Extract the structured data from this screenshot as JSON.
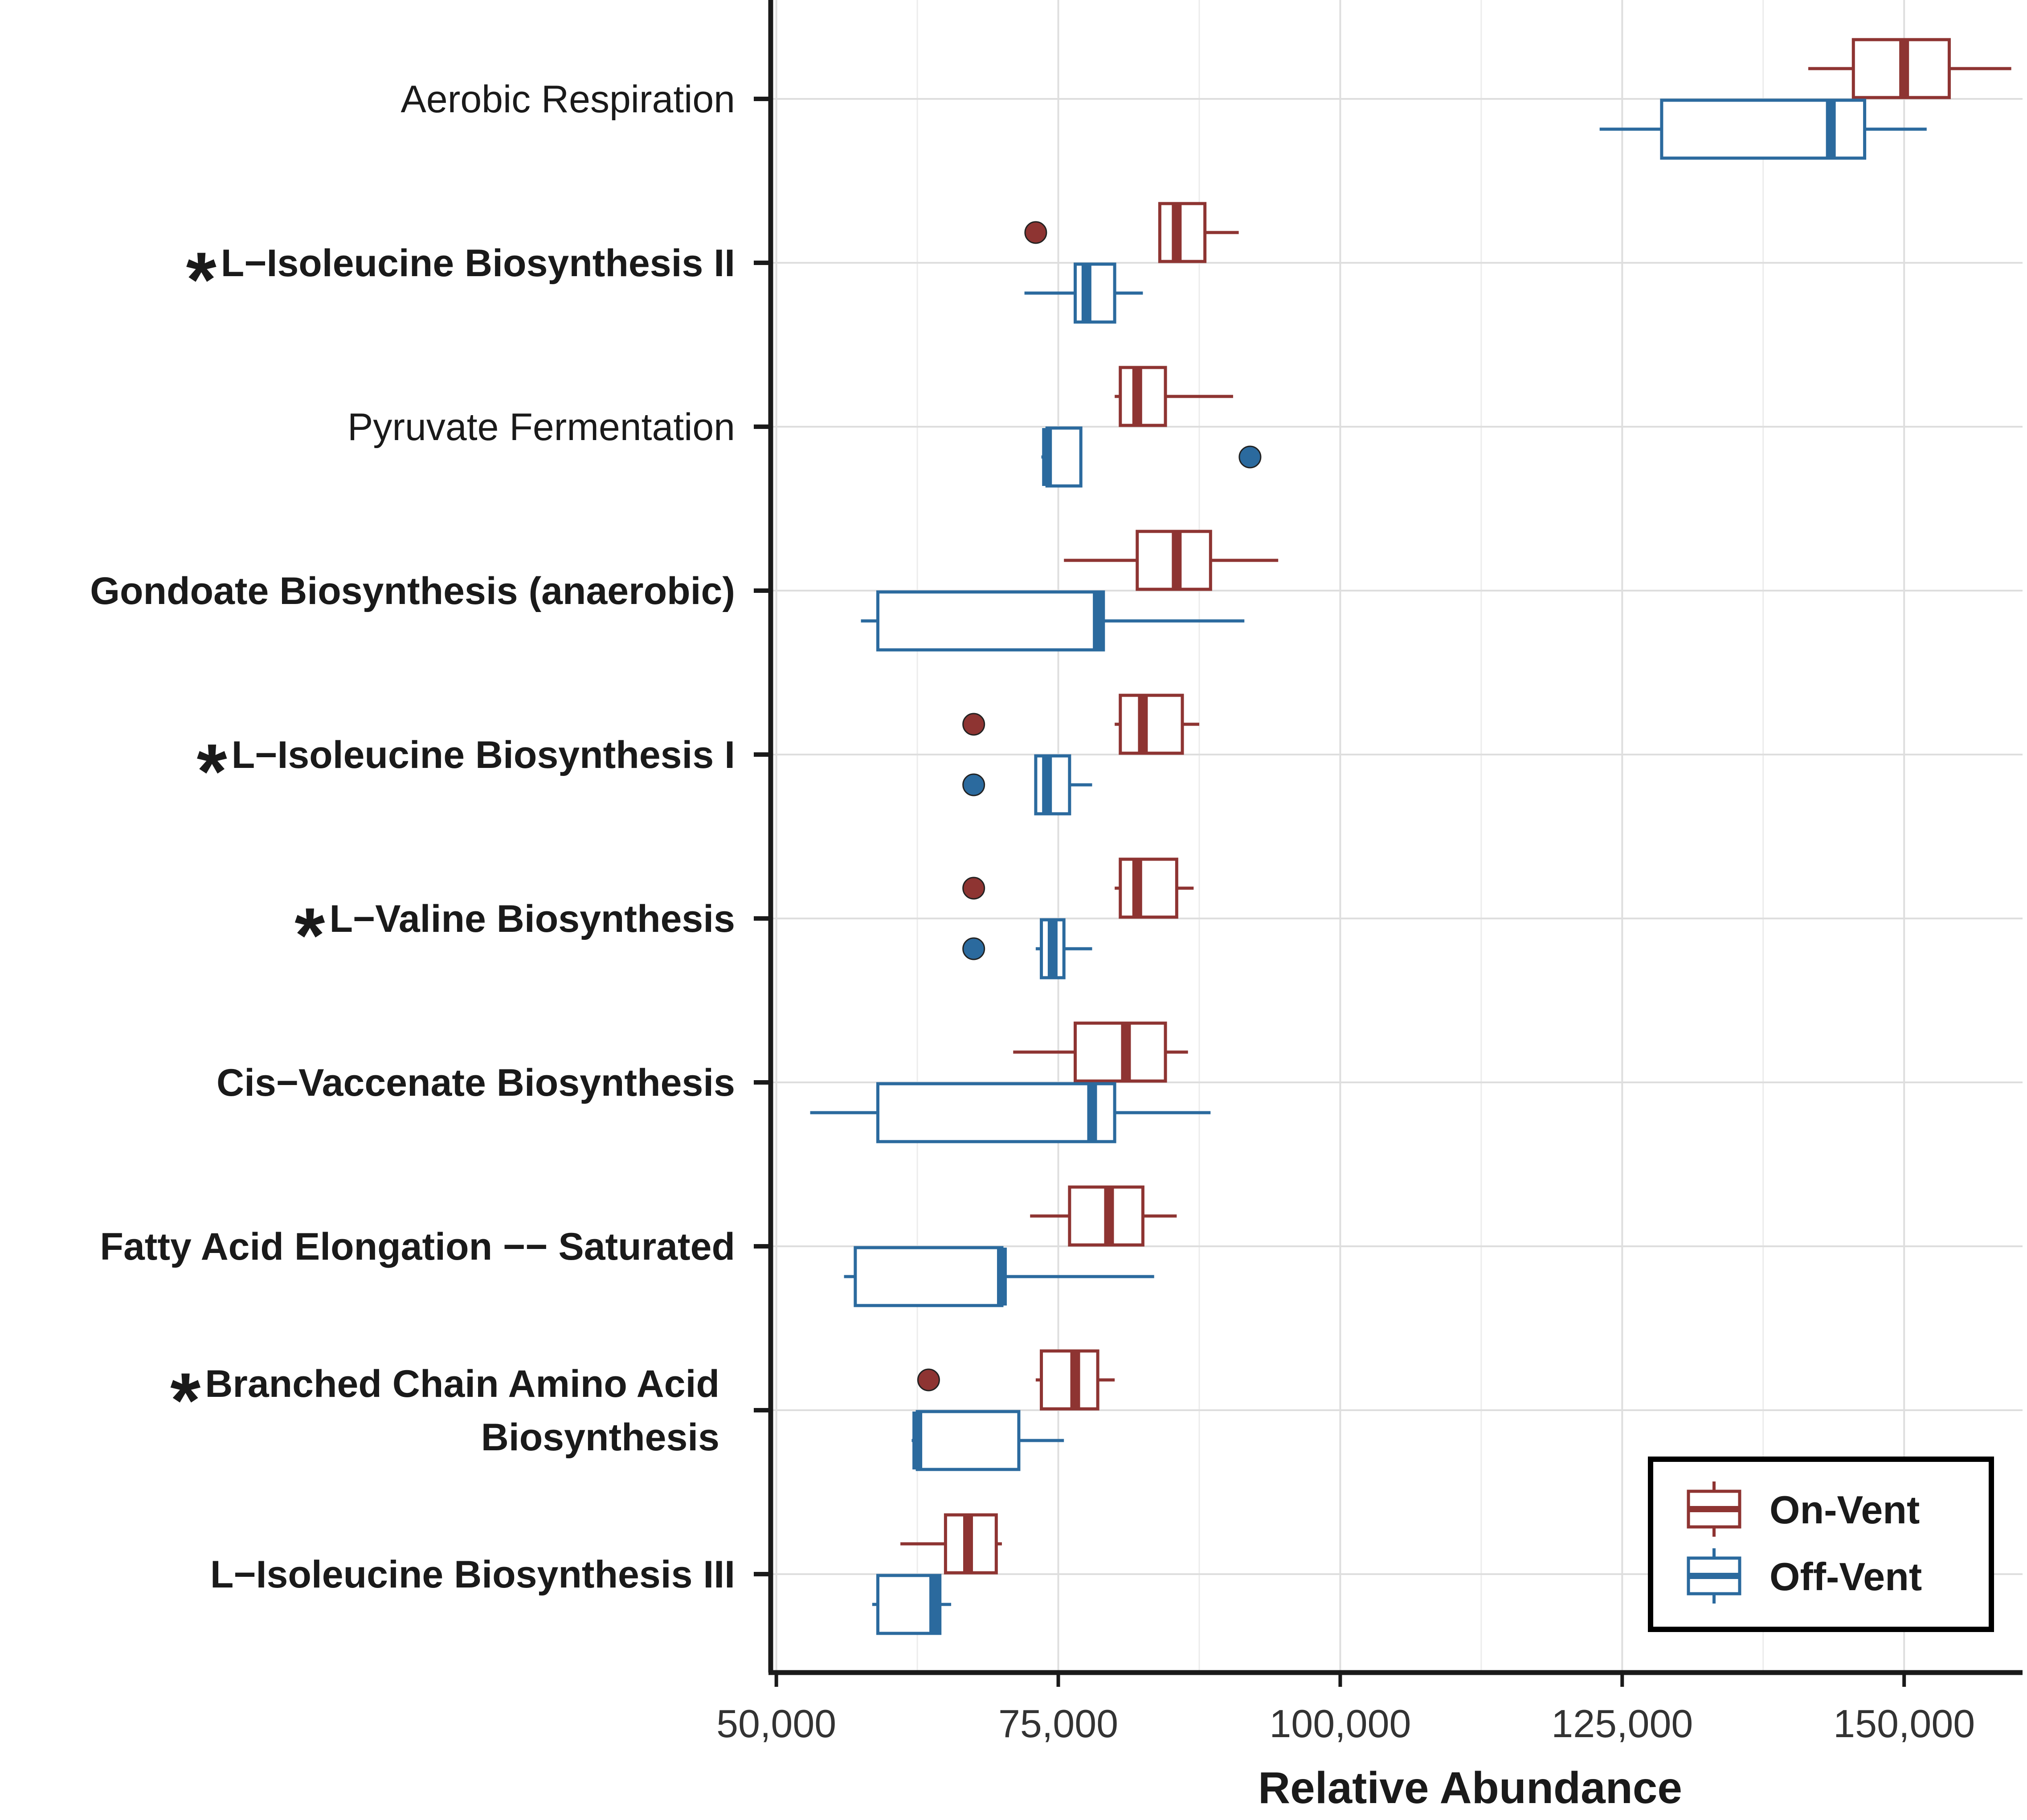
{
  "chart_data": {
    "type": "boxplot",
    "orientation": "horizontal",
    "xlabel": "Relative Abundance",
    "ylabel": "",
    "xlim": [
      49500,
      160500
    ],
    "xticks": [
      50000,
      75000,
      100000,
      125000,
      150000
    ],
    "xtick_labels": [
      "50,000",
      "75,000",
      "100,000",
      "125,000",
      "150,000"
    ],
    "grid": true,
    "legend_position": "bottom-right",
    "series": [
      {
        "key": "on",
        "name": "On-Vent",
        "color": "#8E3432"
      },
      {
        "key": "off",
        "name": "Off-Vent",
        "color": "#2B6A9E"
      }
    ],
    "categories": [
      {
        "label": [
          "Aerobic Respiration"
        ],
        "significant": false,
        "bold": false,
        "on": {
          "whisker_low": 141500,
          "q1": 145500,
          "median": 150000,
          "q3": 154000,
          "whisker_high": 159500,
          "outliers": []
        },
        "off": {
          "whisker_low": 123000,
          "q1": 128500,
          "median": 143500,
          "q3": 146500,
          "whisker_high": 152000,
          "outliers": []
        }
      },
      {
        "label": [
          "L−Isoleucine Biosynthesis II"
        ],
        "significant": true,
        "bold": true,
        "on": {
          "whisker_low": 84000,
          "q1": 84000,
          "median": 85500,
          "q3": 88000,
          "whisker_high": 91000,
          "outliers": [
            73000
          ]
        },
        "off": {
          "whisker_low": 72000,
          "q1": 76500,
          "median": 77500,
          "q3": 80000,
          "whisker_high": 82500,
          "outliers": []
        }
      },
      {
        "label": [
          "Pyruvate Fermentation"
        ],
        "significant": false,
        "bold": false,
        "on": {
          "whisker_low": 80000,
          "q1": 80500,
          "median": 82000,
          "q3": 84500,
          "whisker_high": 90500,
          "outliers": []
        },
        "off": {
          "whisker_low": 73500,
          "q1": 74000,
          "median": 74000,
          "q3": 77000,
          "whisker_high": 77000,
          "outliers": [
            92000
          ]
        }
      },
      {
        "label": [
          "Gondoate Biosynthesis (anaerobic)"
        ],
        "significant": false,
        "bold": true,
        "on": {
          "whisker_low": 75500,
          "q1": 82000,
          "median": 85500,
          "q3": 88500,
          "whisker_high": 94500,
          "outliers": []
        },
        "off": {
          "whisker_low": 57500,
          "q1": 59000,
          "median": 78500,
          "q3": 79000,
          "whisker_high": 91500,
          "outliers": []
        }
      },
      {
        "label": [
          "L−Isoleucine Biosynthesis I"
        ],
        "significant": true,
        "bold": true,
        "on": {
          "whisker_low": 80000,
          "q1": 80500,
          "median": 82500,
          "q3": 86000,
          "whisker_high": 87500,
          "outliers": [
            67500
          ]
        },
        "off": {
          "whisker_low": 73000,
          "q1": 73000,
          "median": 74000,
          "q3": 76000,
          "whisker_high": 78000,
          "outliers": [
            67500
          ]
        }
      },
      {
        "label": [
          "L−Valine Biosynthesis"
        ],
        "significant": true,
        "bold": true,
        "on": {
          "whisker_low": 80000,
          "q1": 80500,
          "median": 82000,
          "q3": 85500,
          "whisker_high": 87000,
          "outliers": [
            67500
          ]
        },
        "off": {
          "whisker_low": 73000,
          "q1": 73500,
          "median": 74500,
          "q3": 75500,
          "whisker_high": 78000,
          "outliers": [
            67500
          ]
        }
      },
      {
        "label": [
          "Cis−Vaccenate Biosynthesis"
        ],
        "significant": false,
        "bold": true,
        "on": {
          "whisker_low": 71000,
          "q1": 76500,
          "median": 81000,
          "q3": 84500,
          "whisker_high": 86500,
          "outliers": []
        },
        "off": {
          "whisker_low": 53000,
          "q1": 59000,
          "median": 78000,
          "q3": 80000,
          "whisker_high": 88500,
          "outliers": []
        }
      },
      {
        "label": [
          "Fatty Acid Elongation −− Saturated"
        ],
        "significant": false,
        "bold": true,
        "on": {
          "whisker_low": 72500,
          "q1": 76000,
          "median": 79500,
          "q3": 82500,
          "whisker_high": 85500,
          "outliers": []
        },
        "off": {
          "whisker_low": 56000,
          "q1": 57000,
          "median": 70000,
          "q3": 70000,
          "whisker_high": 83500,
          "outliers": []
        }
      },
      {
        "label": [
          "Branched Chain Amino Acid",
          "Biosynthesis"
        ],
        "significant": true,
        "bold": true,
        "on": {
          "whisker_low": 73000,
          "q1": 73500,
          "median": 76500,
          "q3": 78500,
          "whisker_high": 80000,
          "outliers": [
            63500
          ]
        },
        "off": {
          "whisker_low": 62000,
          "q1": 62500,
          "median": 62500,
          "q3": 71500,
          "whisker_high": 75500,
          "outliers": []
        }
      },
      {
        "label": [
          "L−Isoleucine Biosynthesis III"
        ],
        "significant": false,
        "bold": true,
        "on": {
          "whisker_low": 61000,
          "q1": 65000,
          "median": 67000,
          "q3": 69500,
          "whisker_high": 70000,
          "outliers": []
        },
        "off": {
          "whisker_low": 58500,
          "q1": 59000,
          "median": 64000,
          "q3": 64500,
          "whisker_high": 65500,
          "outliers": []
        }
      }
    ],
    "significance_marker": "*"
  }
}
